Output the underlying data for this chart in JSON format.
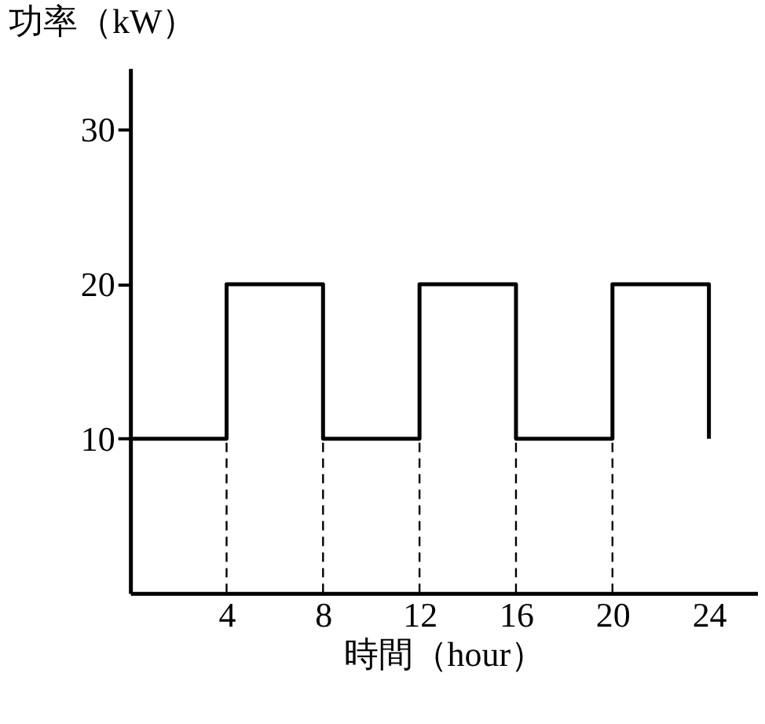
{
  "chart_data": {
    "type": "step",
    "xlabel": "時間（hour）",
    "ylabel": "功率（kW）",
    "x": [
      0,
      4,
      8,
      12,
      16,
      20,
      24
    ],
    "series": [
      {
        "color": "#000000",
        "values": [
          10,
          20,
          10,
          20,
          10,
          20,
          10
        ]
      }
    ],
    "xlim": [
      0,
      26
    ],
    "ylim": [
      0,
      34
    ],
    "xticks": [
      4,
      8,
      12,
      16,
      20,
      24
    ],
    "yticks": [
      10,
      20,
      30
    ],
    "ref_lines": [
      {
        "axis": "x",
        "value": 4,
        "line_style": "dashed"
      },
      {
        "axis": "x",
        "value": 8,
        "line_style": "dashed"
      },
      {
        "axis": "x",
        "value": 12,
        "line_style": "dashed"
      },
      {
        "axis": "x",
        "value": 16,
        "line_style": "dashed"
      },
      {
        "axis": "x",
        "value": 20,
        "line_style": "dashed"
      }
    ],
    "grid": false,
    "marker": "none",
    "line_style": "solid"
  }
}
